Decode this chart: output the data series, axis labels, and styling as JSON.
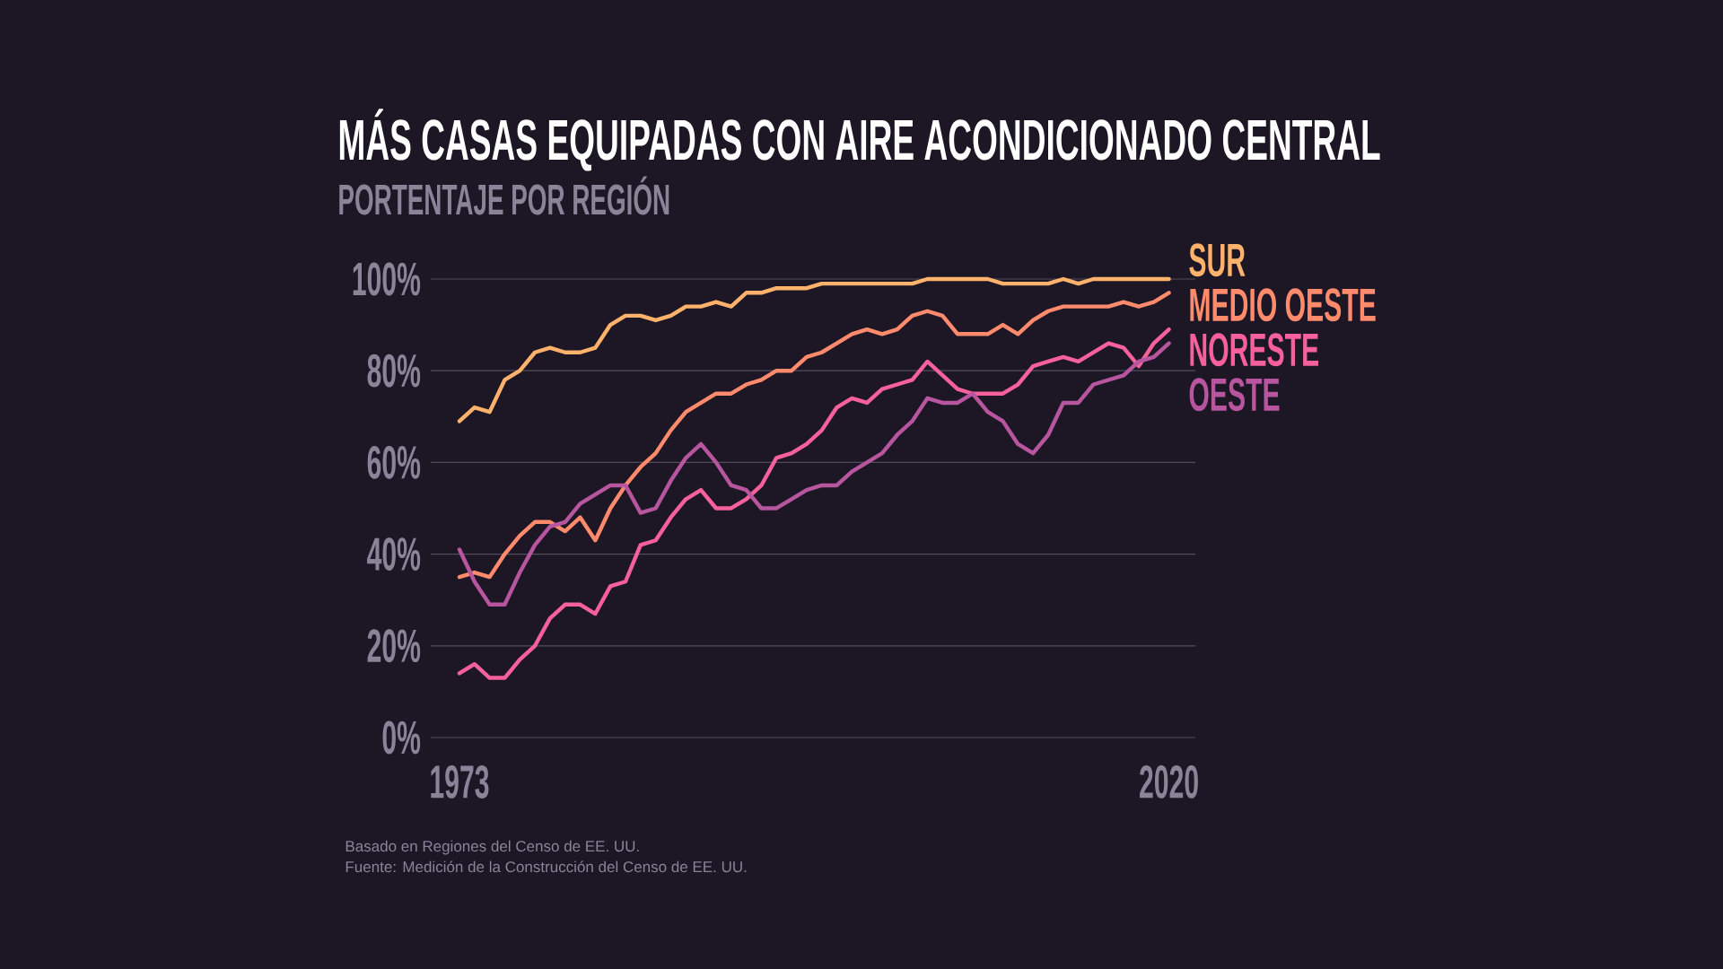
{
  "chart_data": {
    "type": "line",
    "title": "MÁS CASAS EQUIPADAS CON AIRE ACONDICIONADO CENTRAL",
    "subtitle": "PORTENTAJE POR REGIÓN",
    "annotations": [
      "Basado en Regiones del Censo de EE. UU.",
      "Fuente: Medición de la Construcción del Censo de EE. UU."
    ],
    "x": [
      1973,
      1974,
      1975,
      1976,
      1977,
      1978,
      1979,
      1980,
      1981,
      1982,
      1983,
      1984,
      1985,
      1986,
      1987,
      1988,
      1989,
      1990,
      1991,
      1992,
      1993,
      1994,
      1995,
      1996,
      1997,
      1998,
      1999,
      2000,
      2001,
      2002,
      2003,
      2004,
      2005,
      2006,
      2007,
      2008,
      2009,
      2010,
      2011,
      2012,
      2013,
      2014,
      2015,
      2016,
      2017,
      2018,
      2019,
      2020
    ],
    "series": [
      {
        "name": "SUR",
        "color": "#ffb26b",
        "values": [
          69,
          72,
          71,
          78,
          80,
          84,
          85,
          84,
          84,
          85,
          90,
          92,
          92,
          91,
          92,
          94,
          94,
          95,
          94,
          97,
          97,
          98,
          98,
          98,
          99,
          99,
          99,
          99,
          99,
          99,
          99,
          100,
          100,
          100,
          100,
          100,
          99,
          99,
          99,
          99,
          100,
          99,
          100,
          100,
          100,
          100,
          100,
          100
        ]
      },
      {
        "name": "MEDIO OESTE",
        "color": "#ff8a6c",
        "values": [
          35,
          36,
          35,
          40,
          44,
          47,
          47,
          45,
          48,
          43,
          50,
          55,
          59,
          62,
          67,
          71,
          73,
          75,
          75,
          77,
          78,
          80,
          80,
          83,
          84,
          86,
          88,
          89,
          88,
          89,
          92,
          93,
          92,
          88,
          88,
          88,
          90,
          88,
          91,
          93,
          94,
          94,
          94,
          94,
          95,
          94,
          95,
          97
        ]
      },
      {
        "name": "NORESTE",
        "color": "#f6609b",
        "values": [
          14,
          16,
          13,
          13,
          17,
          20,
          26,
          29,
          29,
          27,
          33,
          34,
          42,
          43,
          48,
          52,
          54,
          50,
          50,
          52,
          55,
          61,
          62,
          64,
          67,
          72,
          74,
          73,
          76,
          77,
          78,
          82,
          79,
          76,
          75,
          75,
          75,
          77,
          81,
          82,
          83,
          82,
          84,
          86,
          85,
          81,
          86,
          89
        ]
      },
      {
        "name": "OESTE",
        "color": "#b7559f",
        "values": [
          41,
          34,
          29,
          29,
          36,
          42,
          46,
          47,
          51,
          53,
          55,
          55,
          49,
          50,
          56,
          61,
          64,
          60,
          55,
          54,
          50,
          50,
          52,
          54,
          55,
          55,
          58,
          60,
          62,
          66,
          69,
          74,
          73,
          73,
          75,
          71,
          69,
          64,
          62,
          66,
          73,
          73,
          77,
          78,
          79,
          82,
          83,
          86
        ]
      }
    ],
    "xlim": [
      1971.1,
      2021.75
    ],
    "xticks": [
      1973,
      2020
    ],
    "ylim": [
      0,
      100
    ],
    "yticks": [
      {
        "value": 0,
        "label": "0%"
      },
      {
        "value": 20,
        "label": "20%"
      },
      {
        "value": 40,
        "label": "40%"
      },
      {
        "value": 60,
        "label": "60%"
      },
      {
        "value": 80,
        "label": "80%"
      },
      {
        "value": 100,
        "label": "100%"
      }
    ],
    "grid": "y",
    "legend": "right"
  }
}
